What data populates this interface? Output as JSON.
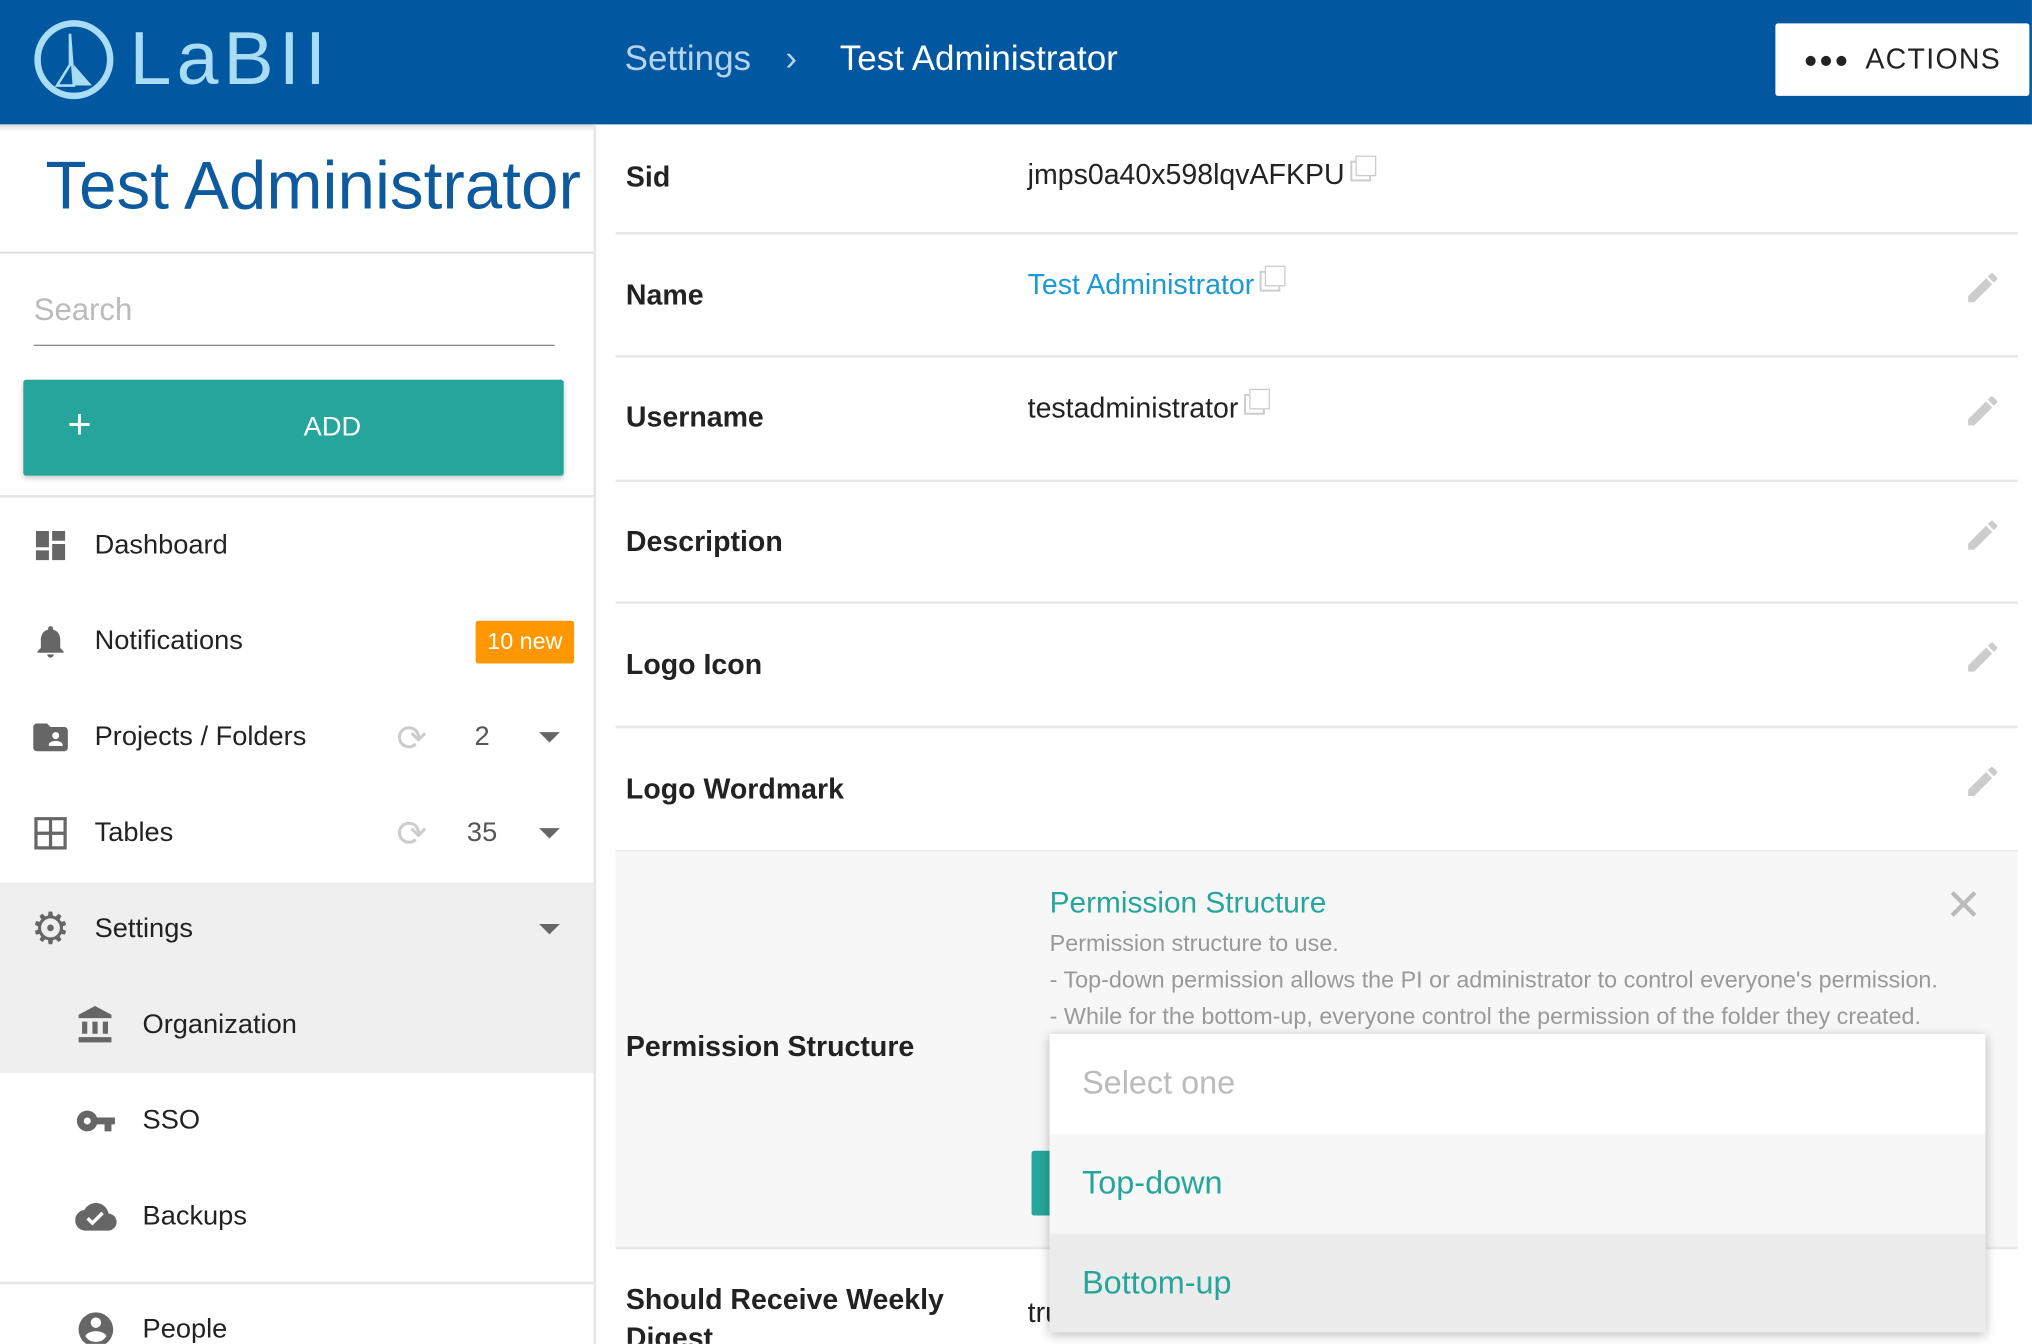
{
  "header": {
    "logo_text": "LaBII",
    "breadcrumb": [
      "Settings",
      "Test Administrator"
    ],
    "actions_label": "ACTIONS"
  },
  "sidebar": {
    "title": "Test Administrator",
    "search_placeholder": "Search",
    "add_label": "ADD",
    "items": [
      {
        "label": "Dashboard",
        "icon": "dashboard-icon"
      },
      {
        "label": "Notifications",
        "icon": "bell-icon",
        "badge": "10 new"
      },
      {
        "label": "Projects / Folders",
        "icon": "folder-account-icon",
        "count": "2"
      },
      {
        "label": "Tables",
        "icon": "table-grid-icon",
        "count": "35"
      },
      {
        "label": "Settings",
        "icon": "gear-icon",
        "expanded": true
      },
      {
        "label": "Organization",
        "icon": "bank-icon",
        "active": true
      },
      {
        "label": "SSO",
        "icon": "key-icon"
      },
      {
        "label": "Backups",
        "icon": "cloud-check-icon"
      },
      {
        "label": "People",
        "icon": "account-circle-icon"
      }
    ]
  },
  "fields": [
    {
      "label": "Sid",
      "value": "jmps0a40x598lqvAFKPU"
    },
    {
      "label": "Name",
      "value": "Test Administrator"
    },
    {
      "label": "Username",
      "value": "testadministrator"
    },
    {
      "label": "Description",
      "value": ""
    },
    {
      "label": "Logo Icon",
      "value": ""
    },
    {
      "label": "Logo Wordmark",
      "value": ""
    },
    {
      "label": "Permission Structure",
      "value": ""
    },
    {
      "label": "Should Receive Weekly Digest",
      "value": "tru"
    }
  ],
  "permission_editor": {
    "title": "Permission Structure",
    "description": [
      "Permission structure to use.",
      "- Top-down permission allows the PI or administrator to control everyone's permission.",
      "- While for the bottom-up, everyone control the permission of the folder they created."
    ],
    "select_placeholder": "Select one",
    "options": [
      "Top-down",
      "Bottom-up"
    ]
  },
  "colors": {
    "header": "#0157a0",
    "accent": "#26a69a",
    "badge": "#ff9800",
    "link": "#1a9bd7"
  }
}
